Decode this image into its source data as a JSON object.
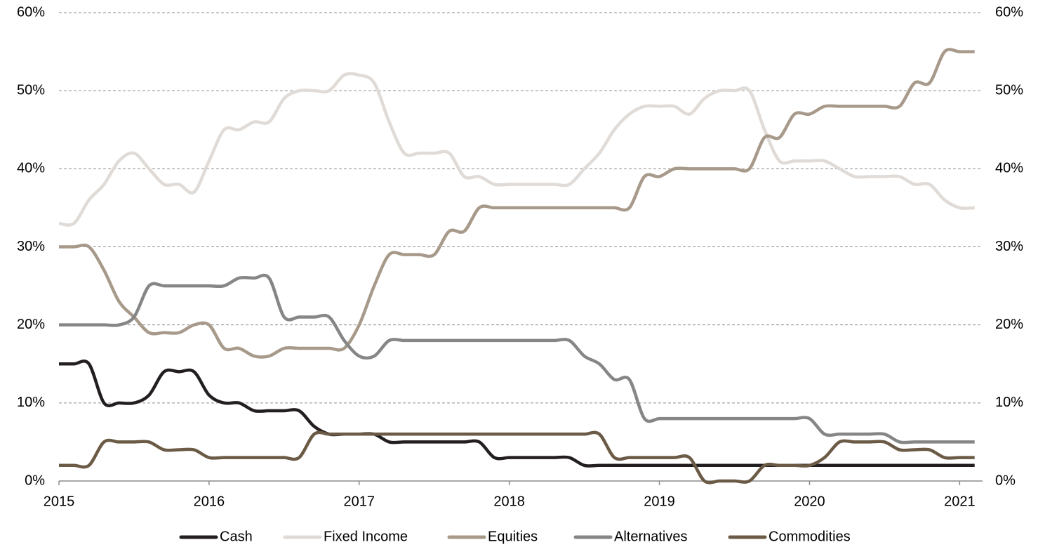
{
  "chart_data": {
    "type": "line",
    "x": [
      2015,
      2015.1,
      2015.2,
      2015.3,
      2015.4,
      2015.5,
      2015.6,
      2015.7,
      2015.8,
      2015.9,
      2016,
      2016.1,
      2016.2,
      2016.3,
      2016.4,
      2016.5,
      2016.6,
      2016.7,
      2016.8,
      2016.9,
      2017,
      2017.1,
      2017.2,
      2017.3,
      2017.4,
      2017.5,
      2017.6,
      2017.7,
      2017.8,
      2017.9,
      2018,
      2018.1,
      2018.2,
      2018.3,
      2018.4,
      2018.5,
      2018.6,
      2018.7,
      2018.8,
      2018.9,
      2019,
      2019.1,
      2019.2,
      2019.3,
      2019.4,
      2019.5,
      2019.6,
      2019.7,
      2019.8,
      2019.9,
      2020,
      2020.1,
      2020.2,
      2020.3,
      2020.4,
      2020.5,
      2020.6,
      2020.7,
      2020.8,
      2020.9,
      2021,
      2021.1
    ],
    "series": [
      {
        "name": "Cash",
        "color": "#231f20",
        "values": [
          15,
          15,
          15,
          10,
          10,
          10,
          11,
          14,
          14,
          14,
          11,
          10,
          10,
          9,
          9,
          9,
          9,
          7,
          6,
          6,
          6,
          6,
          5,
          5,
          5,
          5,
          5,
          5,
          5,
          3,
          3,
          3,
          3,
          3,
          3,
          2,
          2,
          2,
          2,
          2,
          2,
          2,
          2,
          2,
          2,
          2,
          2,
          2,
          2,
          2,
          2,
          2,
          2,
          2,
          2,
          2,
          2,
          2,
          2,
          2,
          2,
          2
        ]
      },
      {
        "name": "Fixed Income",
        "color": "#e0dbd6",
        "values": [
          33,
          33,
          36,
          38,
          41,
          42,
          40,
          38,
          38,
          37,
          41,
          45,
          45,
          46,
          46,
          49,
          50,
          50,
          50,
          52,
          52,
          51,
          46,
          42,
          42,
          42,
          42,
          39,
          39,
          38,
          38,
          38,
          38,
          38,
          38,
          40,
          42,
          45,
          47,
          48,
          48,
          48,
          47,
          49,
          50,
          50,
          50,
          45,
          41,
          41,
          41,
          41,
          40,
          39,
          39,
          39,
          39,
          38,
          38,
          36,
          35,
          35
        ]
      },
      {
        "name": "Equities",
        "color": "#a89a8a",
        "values": [
          30,
          30,
          30,
          27,
          23,
          21,
          19,
          19,
          19,
          20,
          20,
          17,
          17,
          16,
          16,
          17,
          17,
          17,
          17,
          17,
          20,
          25,
          29,
          29,
          29,
          29,
          32,
          32,
          35,
          35,
          35,
          35,
          35,
          35,
          35,
          35,
          35,
          35,
          35,
          39,
          39,
          40,
          40,
          40,
          40,
          40,
          40,
          44,
          44,
          47,
          47,
          48,
          48,
          48,
          48,
          48,
          48,
          51,
          51,
          55,
          55,
          55
        ]
      },
      {
        "name": "Alternatives",
        "color": "#868686",
        "values": [
          20,
          20,
          20,
          20,
          20,
          21,
          25,
          25,
          25,
          25,
          25,
          25,
          26,
          26,
          26,
          21,
          21,
          21,
          21,
          18,
          16,
          16,
          18,
          18,
          18,
          18,
          18,
          18,
          18,
          18,
          18,
          18,
          18,
          18,
          18,
          16,
          15,
          13,
          13,
          8,
          8,
          8,
          8,
          8,
          8,
          8,
          8,
          8,
          8,
          8,
          8,
          6,
          6,
          6,
          6,
          6,
          5,
          5,
          5,
          5,
          5,
          5
        ]
      },
      {
        "name": "Commodities",
        "color": "#6b5a45",
        "values": [
          2,
          2,
          2,
          5,
          5,
          5,
          5,
          4,
          4,
          4,
          3,
          3,
          3,
          3,
          3,
          3,
          3,
          6,
          6,
          6,
          6,
          6,
          6,
          6,
          6,
          6,
          6,
          6,
          6,
          6,
          6,
          6,
          6,
          6,
          6,
          6,
          6,
          3,
          3,
          3,
          3,
          3,
          3,
          0,
          0,
          0,
          0,
          2,
          2,
          2,
          2,
          3,
          5,
          5,
          5,
          5,
          4,
          4,
          4,
          3,
          3,
          3
        ]
      }
    ],
    "xlim": [
      2015,
      2021.12
    ],
    "xticks": [
      2015,
      2016,
      2017,
      2018,
      2019,
      2020,
      2021
    ],
    "ylim": [
      0,
      60
    ],
    "yticks": [
      {
        "value": 0,
        "label": "0%"
      },
      {
        "value": 10,
        "label": "10%"
      },
      {
        "value": 20,
        "label": "20%"
      },
      {
        "value": 30,
        "label": "30%"
      },
      {
        "value": 40,
        "label": "40%"
      },
      {
        "value": 50,
        "label": "50%"
      },
      {
        "value": 60,
        "label": "60%"
      }
    ],
    "y2lim": [
      0,
      60
    ],
    "y2ticks": [
      {
        "value": 0,
        "label": "0%"
      },
      {
        "value": 10,
        "label": "10%"
      },
      {
        "value": 20,
        "label": "20%"
      },
      {
        "value": 30,
        "label": "30%"
      },
      {
        "value": 40,
        "label": "40%"
      },
      {
        "value": 50,
        "label": "50%"
      },
      {
        "value": 60,
        "label": "60%"
      }
    ],
    "grid": true,
    "legend": "bottom"
  }
}
